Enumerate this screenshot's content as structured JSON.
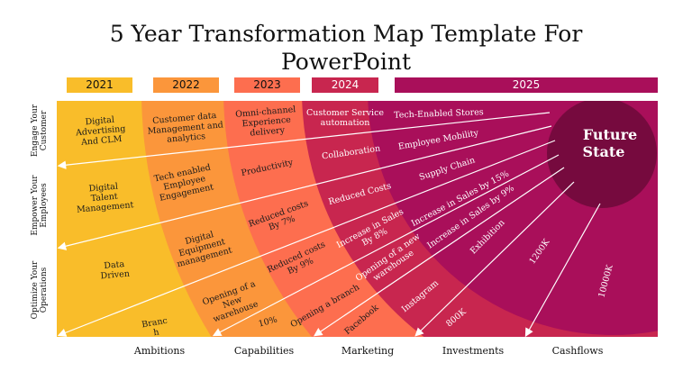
{
  "title": [
    "5 Year Transformation Map Template For",
    "PowerPoint"
  ],
  "colors": {
    "y2021": "#f9bd2a",
    "y2022": "#fb963b",
    "y2023": "#fd6e4f",
    "y2024": "#c8264f",
    "y2025": "#a90f5a",
    "future": "#760a3e"
  },
  "years": [
    "2021",
    "2022",
    "2023",
    "2024",
    "2025"
  ],
  "future_state": [
    "Future",
    "State"
  ],
  "row_labels": [
    [
      "Engage Your",
      "Customer"
    ],
    [
      "Empower Your",
      "Employees"
    ],
    [
      "Optimize Your",
      "Operations"
    ]
  ],
  "column_labels": [
    "Ambitions",
    "Capabilities",
    "Marketing",
    "Investments",
    "Cashflows"
  ],
  "labels": [
    [
      "Digital",
      "Advertising",
      "And CLM"
    ],
    [
      "Digital",
      "Talent",
      "Management"
    ],
    [
      "Data",
      "Driven"
    ],
    [
      "Branc",
      "h"
    ],
    [
      "Customer data",
      "Management and",
      "analytics"
    ],
    [
      "Tech enabled",
      "Employee",
      "Engagement"
    ],
    [
      "Digital",
      "Equipment",
      "management"
    ],
    [
      "Opening of a",
      "New",
      "warehouse"
    ],
    [
      "10%"
    ],
    [
      "Omni-channel",
      "Experience",
      "delivery"
    ],
    [
      "Productivity"
    ],
    [
      "Reduced costs",
      "By 7%"
    ],
    [
      "Reduced costs",
      "By 9%"
    ],
    [
      "Opening a branch"
    ],
    [
      "Customer Service",
      "automation"
    ],
    [
      "Collaboration"
    ],
    [
      "Reduced Costs"
    ],
    [
      "Increase in Sales",
      "By 8%"
    ],
    [
      "Opening of a new",
      "warehouse"
    ],
    [
      "Instagram"
    ],
    [
      "Facebook"
    ],
    [
      "Tech-Enabled Stores"
    ],
    [
      "Employee Mobility"
    ],
    [
      "Supply Chain"
    ],
    [
      "Increase in Sales by 15%"
    ],
    [
      "Increase in Sales by 9%"
    ],
    [
      "Exhibition"
    ],
    [
      "800K"
    ],
    [
      "1200K"
    ],
    [
      "10000K"
    ]
  ]
}
